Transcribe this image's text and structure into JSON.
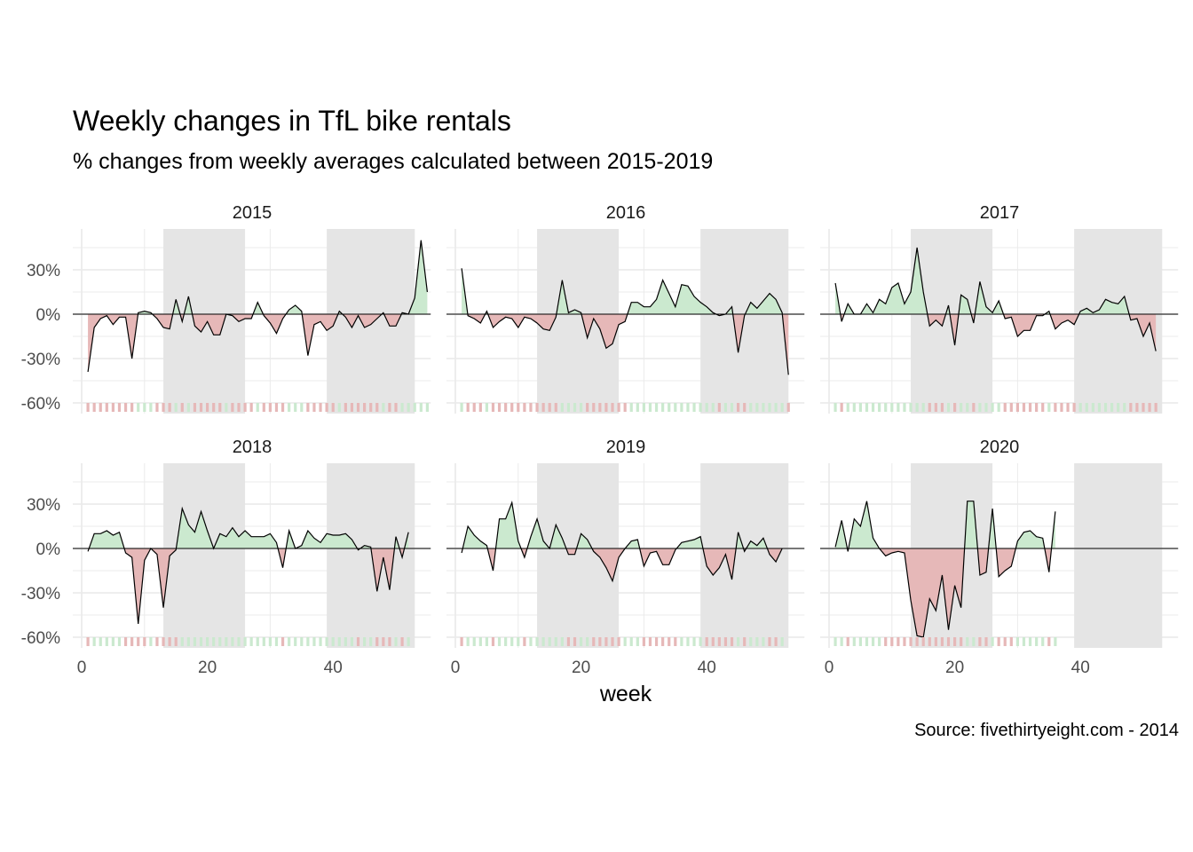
{
  "chart_data": {
    "type": "area",
    "title": "Weekly changes in TfL bike rentals",
    "subtitle": "% changes from weekly averages calculated between 2015-2019",
    "caption": "Source: fivethirtyeight.com - 2014",
    "xlabel": "week",
    "ylabel": "",
    "xlim": [
      0,
      53
    ],
    "ylim": [
      -65,
      52
    ],
    "x_ticks": [
      0,
      20,
      40
    ],
    "x_tick_labels": [
      "0",
      "20",
      "40"
    ],
    "y_ticks": [
      -60,
      -30,
      0,
      30
    ],
    "y_tick_labels": [
      "-60%",
      "-30%",
      "0%",
      "30%"
    ],
    "shaded_week_ranges": [
      [
        13,
        26
      ],
      [
        39,
        53
      ]
    ],
    "grid": true,
    "colors": {
      "positive": "#cbe9cf",
      "negative": "#e6b8b8",
      "shade": "#e5e5e5",
      "grid": "#ebebeb",
      "line": "#000000"
    },
    "panels": [
      {
        "name": "2015",
        "weeks_start": 1,
        "values": [
          -39,
          -9,
          -3,
          -1,
          -7,
          -2,
          -2,
          -30,
          1,
          2,
          1,
          -3,
          -9,
          -10,
          10,
          -5,
          12,
          -8,
          -12,
          -5,
          -14,
          -14,
          0,
          -1,
          -5,
          -3,
          -3,
          8,
          -1,
          -6,
          -13,
          -3,
          3,
          6,
          2,
          -28,
          -7,
          -5,
          -11,
          -8,
          2,
          -2,
          -9,
          -1,
          -9,
          -7,
          -3,
          1,
          -8,
          -8,
          1,
          0,
          11,
          50,
          15
        ]
      },
      {
        "name": "2016",
        "weeks_start": 1,
        "values": [
          31,
          -1,
          -3,
          -6,
          2,
          -9,
          -5,
          -2,
          -3,
          -9,
          -2,
          -3,
          -6,
          -10,
          -11,
          -2,
          23,
          1,
          3,
          1,
          -16,
          -3,
          -10,
          -23,
          -20,
          -7,
          -5,
          8,
          8,
          5,
          5,
          10,
          23,
          14,
          5,
          20,
          19,
          12,
          8,
          5,
          1,
          -1,
          0,
          5,
          -26,
          -1,
          8,
          4,
          9,
          14,
          10,
          1,
          -41
        ]
      },
      {
        "name": "2017",
        "weeks_start": 1,
        "values": [
          21,
          -5,
          7,
          0,
          0,
          7,
          1,
          10,
          7,
          18,
          21,
          7,
          15,
          45,
          15,
          -8,
          -4,
          -8,
          6,
          -21,
          13,
          10,
          -6,
          22,
          5,
          1,
          9,
          -3,
          -2,
          -15,
          -11,
          -11,
          -1,
          -1,
          2,
          -10,
          -6,
          -4,
          -7,
          2,
          4,
          1,
          3,
          10,
          8,
          7,
          12,
          -4,
          -3,
          -15,
          -6,
          -25
        ]
      },
      {
        "name": "2018",
        "weeks_start": 1,
        "values": [
          -2,
          10,
          10,
          12,
          9,
          11,
          -3,
          -6,
          -51,
          -8,
          0,
          -4,
          -40,
          -5,
          -1,
          27,
          16,
          11,
          25,
          12,
          0,
          10,
          8,
          14,
          8,
          12,
          8,
          8,
          8,
          10,
          4,
          -13,
          12,
          0,
          2,
          12,
          7,
          4,
          10,
          9,
          9,
          10,
          6,
          -1,
          2,
          1,
          -29,
          -6,
          -28,
          8,
          -6,
          11
        ]
      },
      {
        "name": "2019",
        "weeks_start": 1,
        "values": [
          -3,
          15,
          9,
          5,
          2,
          -15,
          20,
          20,
          31,
          5,
          -6,
          8,
          20,
          5,
          0,
          16,
          7,
          -4,
          -4,
          10,
          6,
          -2,
          -6,
          -13,
          -22,
          -6,
          0,
          5,
          6,
          -12,
          -3,
          -2,
          -11,
          -11,
          -1,
          4,
          5,
          6,
          8,
          -12,
          -18,
          -13,
          -4,
          -21,
          11,
          -2,
          5,
          2,
          7,
          -4,
          -9,
          0
        ]
      },
      {
        "name": "2020",
        "weeks_start": 1,
        "values": [
          1,
          19,
          -2,
          20,
          15,
          32,
          7,
          0,
          -5,
          -3,
          -2,
          -3,
          -35,
          -59,
          -60,
          -34,
          -42,
          -18,
          -55,
          -25,
          -40,
          32,
          32,
          -18,
          -16,
          27,
          -19,
          -15,
          -12,
          5,
          11,
          12,
          8,
          7,
          -16,
          25
        ]
      }
    ]
  }
}
